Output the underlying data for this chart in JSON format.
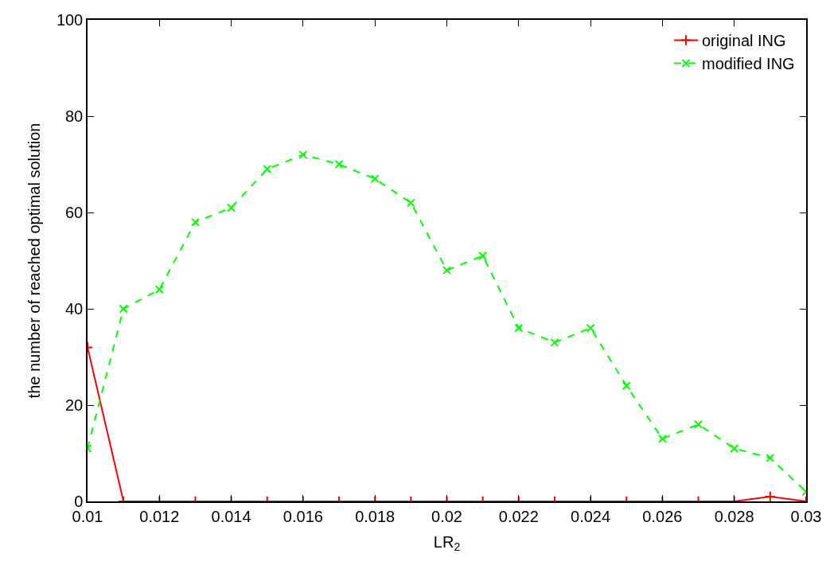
{
  "chart_data": {
    "type": "line",
    "xlabel": "LR$_{2}$",
    "ylabel": "the number of reached optimal solution",
    "x": [
      0.01,
      0.011,
      0.012,
      0.013,
      0.014,
      0.015,
      0.016,
      0.017,
      0.018,
      0.019,
      0.02,
      0.021,
      0.022,
      0.023,
      0.024,
      0.025,
      0.026,
      0.027,
      0.028,
      0.029,
      0.03
    ],
    "series": [
      {
        "name": "original ING",
        "color": "#ff0000",
        "marker": "cross",
        "line_style": "solid",
        "values": [
          32,
          0,
          0,
          0,
          0,
          0,
          0,
          0,
          0,
          0,
          0,
          0,
          0,
          0,
          0,
          0,
          0,
          0,
          0,
          1,
          0
        ]
      },
      {
        "name": "modified ING",
        "color": "#00ff00",
        "marker": "x",
        "line_style": "dashed",
        "values": [
          11,
          40,
          44,
          58,
          61,
          69,
          72,
          70,
          67,
          62,
          48,
          51,
          36,
          33,
          36,
          24,
          13,
          16,
          11,
          9,
          2
        ]
      }
    ],
    "xlim": [
      0.01,
      0.03
    ],
    "xticks": [
      0.01,
      0.012,
      0.014,
      0.016,
      0.018,
      0.02,
      0.022,
      0.024,
      0.026,
      0.028,
      0.03
    ],
    "ylim": [
      0,
      100
    ],
    "yticks": [
      0,
      20,
      40,
      60,
      80,
      100
    ],
    "legend": "top right"
  }
}
